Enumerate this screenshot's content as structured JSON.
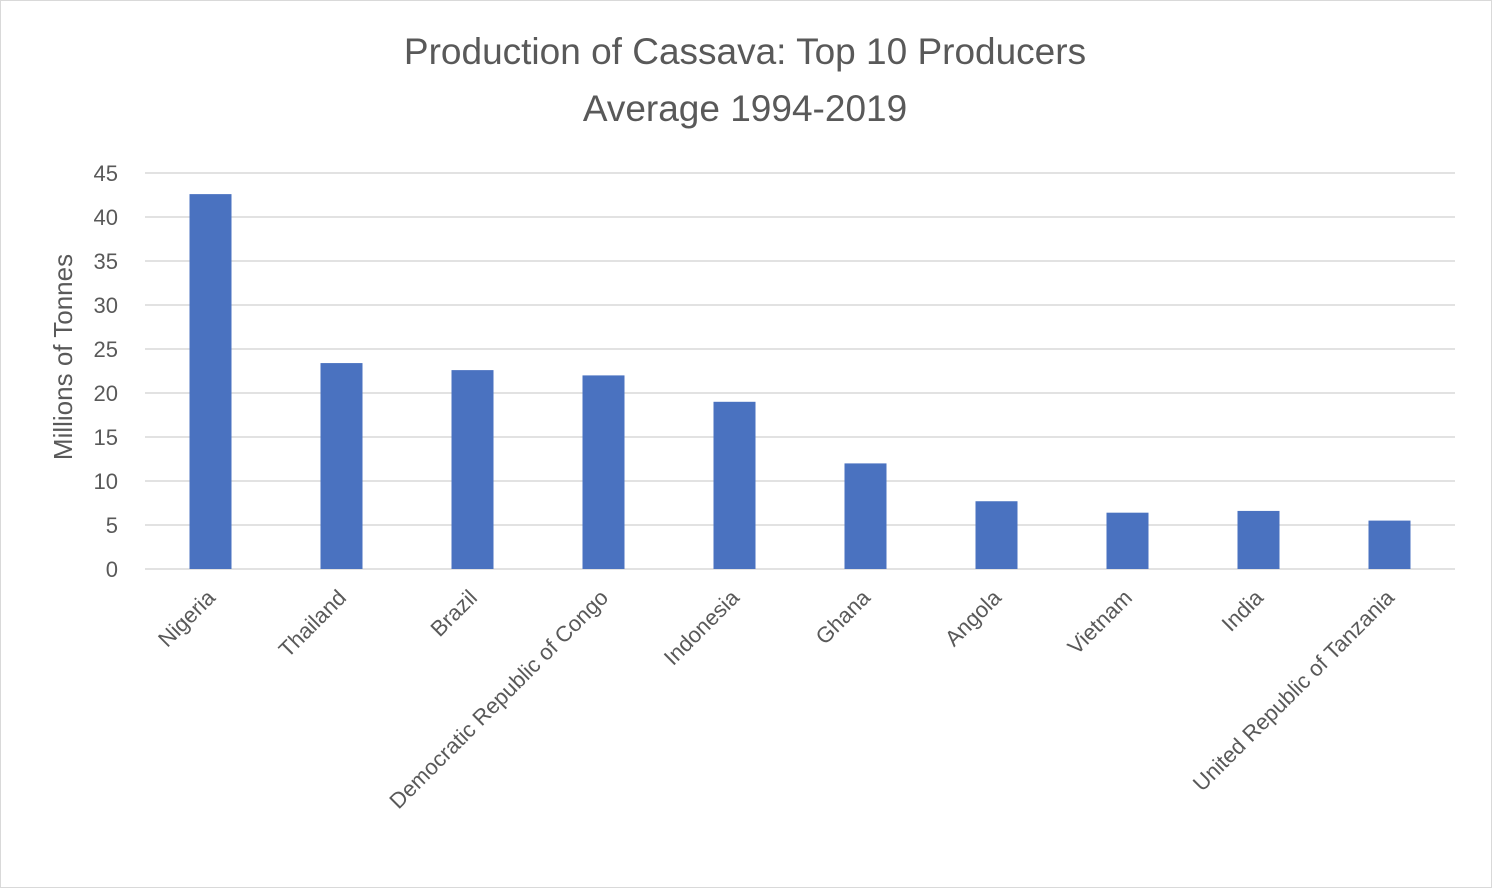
{
  "chart_data": {
    "type": "bar",
    "title": "Production of Cassava: Top 10 Producers",
    "subtitle": "Average 1994-2019",
    "xlabel": "",
    "ylabel": "Millions of Tonnes",
    "ylim": [
      0,
      45
    ],
    "yticks": [
      0,
      5,
      10,
      15,
      20,
      25,
      30,
      35,
      40,
      45
    ],
    "grid": true,
    "legend": "none",
    "categories": [
      "Nigeria",
      "Thailand",
      "Brazil",
      "Democratic Republic of Congo",
      "Indonesia",
      "Ghana",
      "Angola",
      "Vietnam",
      "India",
      "United Republic of Tanzania"
    ],
    "values": [
      42.6,
      23.4,
      22.6,
      22.0,
      19.0,
      12.0,
      7.7,
      6.4,
      6.6,
      5.5
    ],
    "colors": {
      "bar": "#4a72c0",
      "grid": "#d9d9d9",
      "text": "#595959"
    }
  }
}
